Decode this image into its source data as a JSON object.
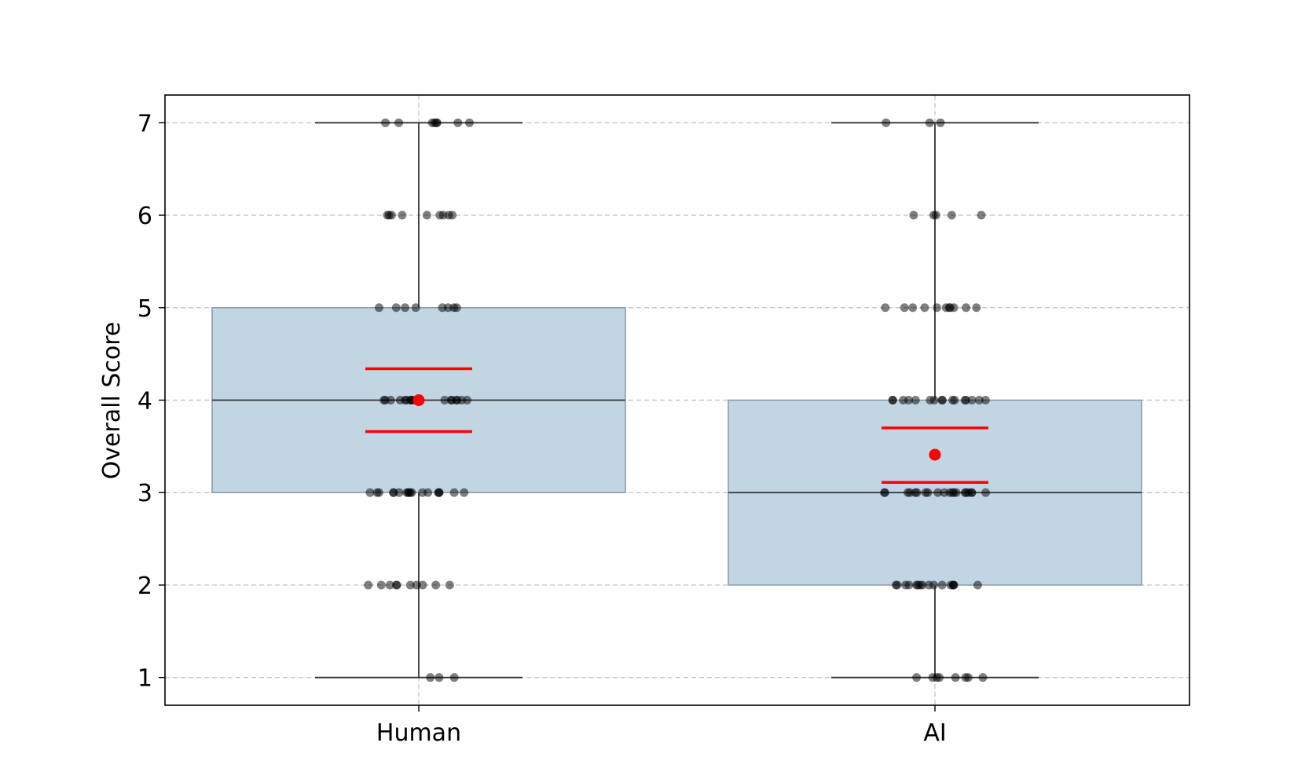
{
  "chart_data": {
    "type": "box",
    "ylabel": "Overall Score",
    "xlabel": "",
    "title": "",
    "categories": [
      "Human",
      "AI"
    ],
    "ylim": [
      0.7,
      7.3
    ],
    "yticks": [
      1,
      2,
      3,
      4,
      5,
      6,
      7
    ],
    "grid": true,
    "boxes": [
      {
        "category": "Human",
        "whisker_low": 1,
        "q1": 3,
        "median": 4,
        "q3": 5,
        "whisker_high": 7,
        "mean": 4.0,
        "ci_low": 3.66,
        "ci_high": 4.34
      },
      {
        "category": "AI",
        "whisker_low": 1,
        "q1": 2,
        "median": 3,
        "q3": 4,
        "whisker_high": 7,
        "mean": 3.41,
        "ci_low": 3.11,
        "ci_high": 3.7
      }
    ],
    "points": [
      {
        "category": "Human",
        "values": [
          7,
          7,
          7,
          7,
          7,
          7,
          7,
          7,
          6,
          6,
          6,
          6,
          6,
          6,
          6,
          6,
          6,
          5,
          5,
          5,
          5,
          5,
          5,
          5,
          5,
          4,
          4,
          4,
          4,
          4,
          4,
          4,
          4,
          4,
          4,
          4,
          4,
          4,
          4,
          4,
          4,
          4,
          4,
          3,
          3,
          3,
          3,
          3,
          3,
          3,
          3,
          3,
          3,
          3,
          3,
          3,
          3,
          3,
          3,
          3,
          3,
          2,
          2,
          2,
          2,
          2,
          2,
          2,
          2,
          2,
          2,
          1,
          1,
          1
        ]
      },
      {
        "category": "AI",
        "values": [
          7,
          7,
          7,
          6,
          6,
          6,
          6,
          6,
          5,
          5,
          5,
          5,
          5,
          5,
          5,
          5,
          5,
          5,
          5,
          4,
          4,
          4,
          4,
          4,
          4,
          4,
          4,
          4,
          4,
          4,
          4,
          4,
          4,
          4,
          4,
          3,
          3,
          3,
          3,
          3,
          3,
          3,
          3,
          3,
          3,
          3,
          3,
          3,
          3,
          3,
          3,
          3,
          3,
          3,
          3,
          2,
          2,
          2,
          2,
          2,
          2,
          2,
          2,
          2,
          2,
          2,
          2,
          2,
          2,
          2,
          2,
          1,
          1,
          1,
          1,
          1,
          1,
          1,
          1
        ]
      }
    ],
    "colors": {
      "box_fill": "#c2d5e3",
      "box_edge": "#8a9aa6",
      "line": "#333333",
      "mean": "#ff0000",
      "points": "#000000",
      "grid": "#bdbdbd"
    }
  }
}
